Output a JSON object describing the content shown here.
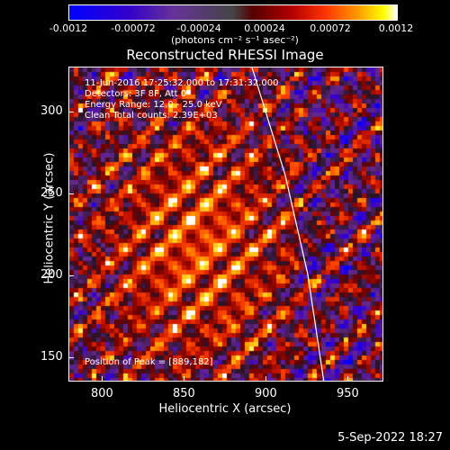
{
  "colorbar": {
    "ticks": [
      "-0.0012",
      "-0.00072",
      "-0.00024",
      "0.00024",
      "0.00072",
      "0.0012"
    ],
    "units": "(photons cm⁻² s⁻¹ asec⁻²)"
  },
  "title": "Reconstructed RHESSI Image",
  "info": {
    "time_range": "11-Jun-2016 17:25:32.000 to 17:31:32.000",
    "detectors": "Detectors: 3F 8F, Att 0",
    "energy_range": "Energy Range: 12.0 - 25.0 keV",
    "method": "Clean      Total counts: 2.39E+03",
    "peak": "Position of Peak = [889,182]"
  },
  "axes": {
    "xlabel": "Heliocentric X (arcsec)",
    "ylabel": "Heliocentric Y (arcsec)",
    "xticks": [
      "800",
      "850",
      "900",
      "950"
    ],
    "yticks": [
      "300",
      "250",
      "200",
      "150"
    ],
    "xlim": [
      780,
      970
    ],
    "ylim": [
      135,
      325
    ]
  },
  "timestamp": "5-Sep-2022 18:27",
  "colors": {
    "limb_line": "#ffffff"
  }
}
